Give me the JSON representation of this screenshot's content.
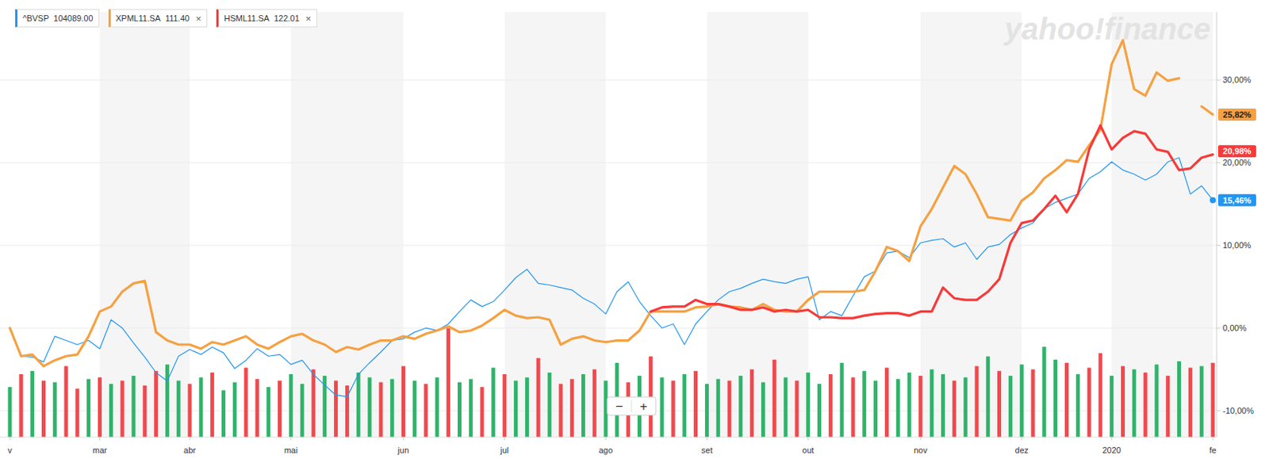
{
  "chart_data": {
    "type": "line",
    "watermark": "yahoo!finance",
    "legend": "top-left",
    "grid": true,
    "zoom_controls": [
      "−",
      "+"
    ],
    "categories": [
      "v",
      null,
      null,
      null,
      null,
      null,
      null,
      null,
      "mar",
      null,
      null,
      null,
      null,
      null,
      null,
      null,
      "abr",
      null,
      null,
      null,
      null,
      null,
      null,
      null,
      null,
      "mai",
      null,
      null,
      null,
      null,
      null,
      null,
      null,
      null,
      null,
      "jun",
      null,
      null,
      null,
      null,
      null,
      null,
      null,
      null,
      "jul",
      null,
      null,
      null,
      null,
      null,
      null,
      null,
      null,
      "ago",
      null,
      null,
      null,
      null,
      null,
      null,
      null,
      null,
      "set",
      null,
      null,
      null,
      null,
      null,
      null,
      null,
      null,
      "out",
      null,
      null,
      null,
      null,
      null,
      null,
      null,
      null,
      null,
      "nov",
      null,
      null,
      null,
      null,
      null,
      null,
      null,
      null,
      "dez",
      null,
      null,
      null,
      null,
      null,
      null,
      null,
      "2020",
      null,
      null,
      null,
      null,
      null,
      null,
      null,
      null,
      "fe"
    ],
    "ylim": [
      -13.2,
      38.2
    ],
    "yticks": [
      {
        "value": -10,
        "label": "-10,00%"
      },
      {
        "value": 0,
        "label": "0,00%"
      },
      {
        "value": 10,
        "label": "10,00%"
      },
      {
        "value": 20,
        "label": "20,00%"
      },
      {
        "value": 30,
        "label": "30,00%"
      }
    ],
    "series": [
      {
        "name": "^BVSP",
        "price_label": "104089.00",
        "color": "#2196f3",
        "marker": "last",
        "end_label": "15,46%",
        "values": [
          0,
          -3.4,
          -3.5,
          -4.1,
          -1,
          -1.5,
          -2,
          -1.5,
          -2.5,
          1,
          0,
          -1.8,
          -3.5,
          -5.4,
          -6.4,
          -3.4,
          -2.6,
          -3.2,
          -2.3,
          -3,
          -4.9,
          -3.9,
          -2.5,
          -3.4,
          -3.2,
          -4.4,
          -3.9,
          -5.6,
          -6.9,
          -8.1,
          -8.3,
          -5.6,
          -4.2,
          -2.9,
          -1.5,
          -1.3,
          -0.5,
          0,
          -0.3,
          0.5,
          2,
          3.4,
          2.6,
          3.2,
          4.6,
          6.1,
          7.1,
          5.4,
          5.2,
          4.9,
          4.6,
          3.6,
          2.9,
          1.7,
          4.4,
          5.6,
          3.2,
          1.5,
          0,
          0.5,
          -2,
          0.5,
          2,
          3.4,
          4.4,
          4.8,
          5.4,
          5.9,
          5.6,
          5.4,
          5.9,
          6.2,
          1,
          2,
          1.5,
          3.9,
          6.2,
          6.9,
          9.1,
          9.3,
          8.5,
          10.3,
          10.6,
          10.8,
          9.8,
          10.3,
          8.3,
          9.8,
          10.1,
          11.3,
          12.1,
          12.7,
          14.4,
          15.2,
          15.7,
          16.2,
          18.1,
          18.9,
          20.1,
          19.1,
          18.6,
          17.9,
          18.6,
          20.1,
          20.6,
          16.2,
          17.2,
          15.46
        ]
      },
      {
        "name": "XPML11.SA",
        "price_label": "111.40",
        "remove_label": "×",
        "color": "#f5a142",
        "end_label": "25,82%",
        "values": [
          0,
          -3.4,
          -3.2,
          -4.6,
          -3.9,
          -3.4,
          -3.2,
          -1,
          2,
          2.6,
          4.4,
          5.4,
          5.7,
          -0.5,
          -1.5,
          -2,
          -2,
          -2.5,
          -1.7,
          -2,
          -1.5,
          -1,
          -2,
          -2.5,
          -1.7,
          -1,
          -0.7,
          -1.5,
          -2,
          -2.9,
          -2.3,
          -2.6,
          -2,
          -1.5,
          -1.5,
          -1,
          -1.3,
          -0.7,
          -0.3,
          0.2,
          -0.5,
          -0.3,
          0.3,
          1.2,
          2.2,
          1.5,
          1.2,
          1.3,
          1,
          -2,
          -1.3,
          -1,
          -1.5,
          -1.7,
          -1.5,
          -1.5,
          -0.3,
          2,
          2,
          2,
          2,
          2.5,
          2.6,
          2.9,
          2.6,
          2.5,
          2.2,
          2.9,
          2.2,
          2,
          2,
          3.4,
          4.4,
          4.4,
          4.4,
          4.4,
          4.6,
          6.9,
          9.8,
          9.3,
          8.1,
          12.3,
          14.4,
          17,
          19.6,
          18.6,
          16.2,
          13.4,
          13.2,
          13,
          15.4,
          16.4,
          18.1,
          19.1,
          20.3,
          20.1,
          22.1,
          24,
          31.9,
          34.8,
          28.9,
          28.1,
          30.9,
          29.9,
          30.2,
          null,
          26.8,
          25.82
        ]
      },
      {
        "name": "HSML11.SA",
        "price_label": "122.01",
        "remove_label": "×",
        "color": "#f73a3a",
        "end_label": "20,98%",
        "values": [
          null,
          null,
          null,
          null,
          null,
          null,
          null,
          null,
          null,
          null,
          null,
          null,
          null,
          null,
          null,
          null,
          null,
          null,
          null,
          null,
          null,
          null,
          null,
          null,
          null,
          null,
          null,
          null,
          null,
          null,
          null,
          null,
          null,
          null,
          null,
          null,
          null,
          null,
          null,
          null,
          null,
          null,
          null,
          null,
          null,
          null,
          null,
          null,
          null,
          null,
          null,
          null,
          null,
          null,
          null,
          null,
          null,
          2,
          2.5,
          2.6,
          2.6,
          3.4,
          2.9,
          2.9,
          2.6,
          2.2,
          2.2,
          2.5,
          2,
          2.2,
          2,
          2.2,
          1.3,
          1.3,
          1.2,
          1.2,
          1.5,
          1.7,
          1.8,
          1.8,
          1.5,
          2,
          2,
          4.9,
          3.6,
          3.4,
          3.4,
          4.4,
          5.9,
          10.3,
          12.7,
          13,
          14.4,
          16,
          14,
          16.2,
          21.6,
          24.5,
          21.6,
          23,
          23.8,
          23.5,
          21.6,
          21.3,
          19.1,
          19.3,
          20.6,
          20.98
        ]
      }
    ],
    "volume": {
      "type": "bar",
      "ylim": [
        0,
        140
      ],
      "values": [
        62,
        78,
        82,
        70,
        68,
        88,
        60,
        72,
        74,
        66,
        70,
        76,
        64,
        82,
        90,
        70,
        66,
        74,
        80,
        58,
        68,
        86,
        72,
        62,
        70,
        78,
        66,
        84,
        76,
        70,
        64,
        80,
        74,
        68,
        72,
        88,
        70,
        66,
        74,
        135,
        68,
        72,
        62,
        86,
        78,
        70,
        74,
        98,
        80,
        66,
        72,
        78,
        84,
        70,
        92,
        68,
        76,
        100,
        74,
        70,
        78,
        82,
        66,
        72,
        70,
        76,
        84,
        68,
        96,
        74,
        70,
        80,
        66,
        78,
        92,
        74,
        82,
        70,
        86,
        72,
        80,
        76,
        84,
        78,
        70,
        74,
        88,
        100,
        82,
        76,
        90,
        84,
        112,
        96,
        92,
        78,
        86,
        104,
        76,
        88,
        84,
        80,
        90,
        76,
        94,
        86,
        88,
        92
      ],
      "colors": [
        "#2fb36a",
        "#f0494e",
        "#2fb36a",
        "#f0494e",
        "#2fb36a",
        "#f0494e",
        "#f0494e",
        "#2fb36a",
        "#f0494e",
        "#2fb36a",
        "#f0494e",
        "#2fb36a",
        "#f0494e",
        "#f0494e",
        "#2fb36a",
        "#2fb36a",
        "#f0494e",
        "#2fb36a",
        "#f0494e",
        "#2fb36a",
        "#2fb36a",
        "#f0494e",
        "#f0494e",
        "#2fb36a",
        "#f0494e",
        "#2fb36a",
        "#2fb36a",
        "#f0494e",
        "#2fb36a",
        "#f0494e",
        "#f0494e",
        "#2fb36a",
        "#2fb36a",
        "#f0494e",
        "#2fb36a",
        "#f0494e",
        "#2fb36a",
        "#f0494e",
        "#2fb36a",
        "#f0494e",
        "#2fb36a",
        "#2fb36a",
        "#f0494e",
        "#2fb36a",
        "#f0494e",
        "#2fb36a",
        "#2fb36a",
        "#f0494e",
        "#2fb36a",
        "#f0494e",
        "#f0494e",
        "#2fb36a",
        "#f0494e",
        "#2fb36a",
        "#2fb36a",
        "#f0494e",
        "#2fb36a",
        "#f0494e",
        "#2fb36a",
        "#f0494e",
        "#2fb36a",
        "#f0494e",
        "#2fb36a",
        "#2fb36a",
        "#f0494e",
        "#2fb36a",
        "#f0494e",
        "#2fb36a",
        "#f0494e",
        "#2fb36a",
        "#f0494e",
        "#2fb36a",
        "#2fb36a",
        "#f0494e",
        "#2fb36a",
        "#f0494e",
        "#2fb36a",
        "#2fb36a",
        "#f0494e",
        "#2fb36a",
        "#2fb36a",
        "#f0494e",
        "#2fb36a",
        "#2fb36a",
        "#f0494e",
        "#2fb36a",
        "#f0494e",
        "#2fb36a",
        "#f0494e",
        "#2fb36a",
        "#2fb36a",
        "#f0494e",
        "#2fb36a",
        "#2fb36a",
        "#f0494e",
        "#2fb36a",
        "#f0494e",
        "#f0494e",
        "#2fb36a",
        "#f0494e",
        "#2fb36a",
        "#f0494e",
        "#2fb36a",
        "#f0494e",
        "#2fb36a",
        "#f0494e",
        "#2fb36a",
        "#f0494e"
      ]
    }
  }
}
